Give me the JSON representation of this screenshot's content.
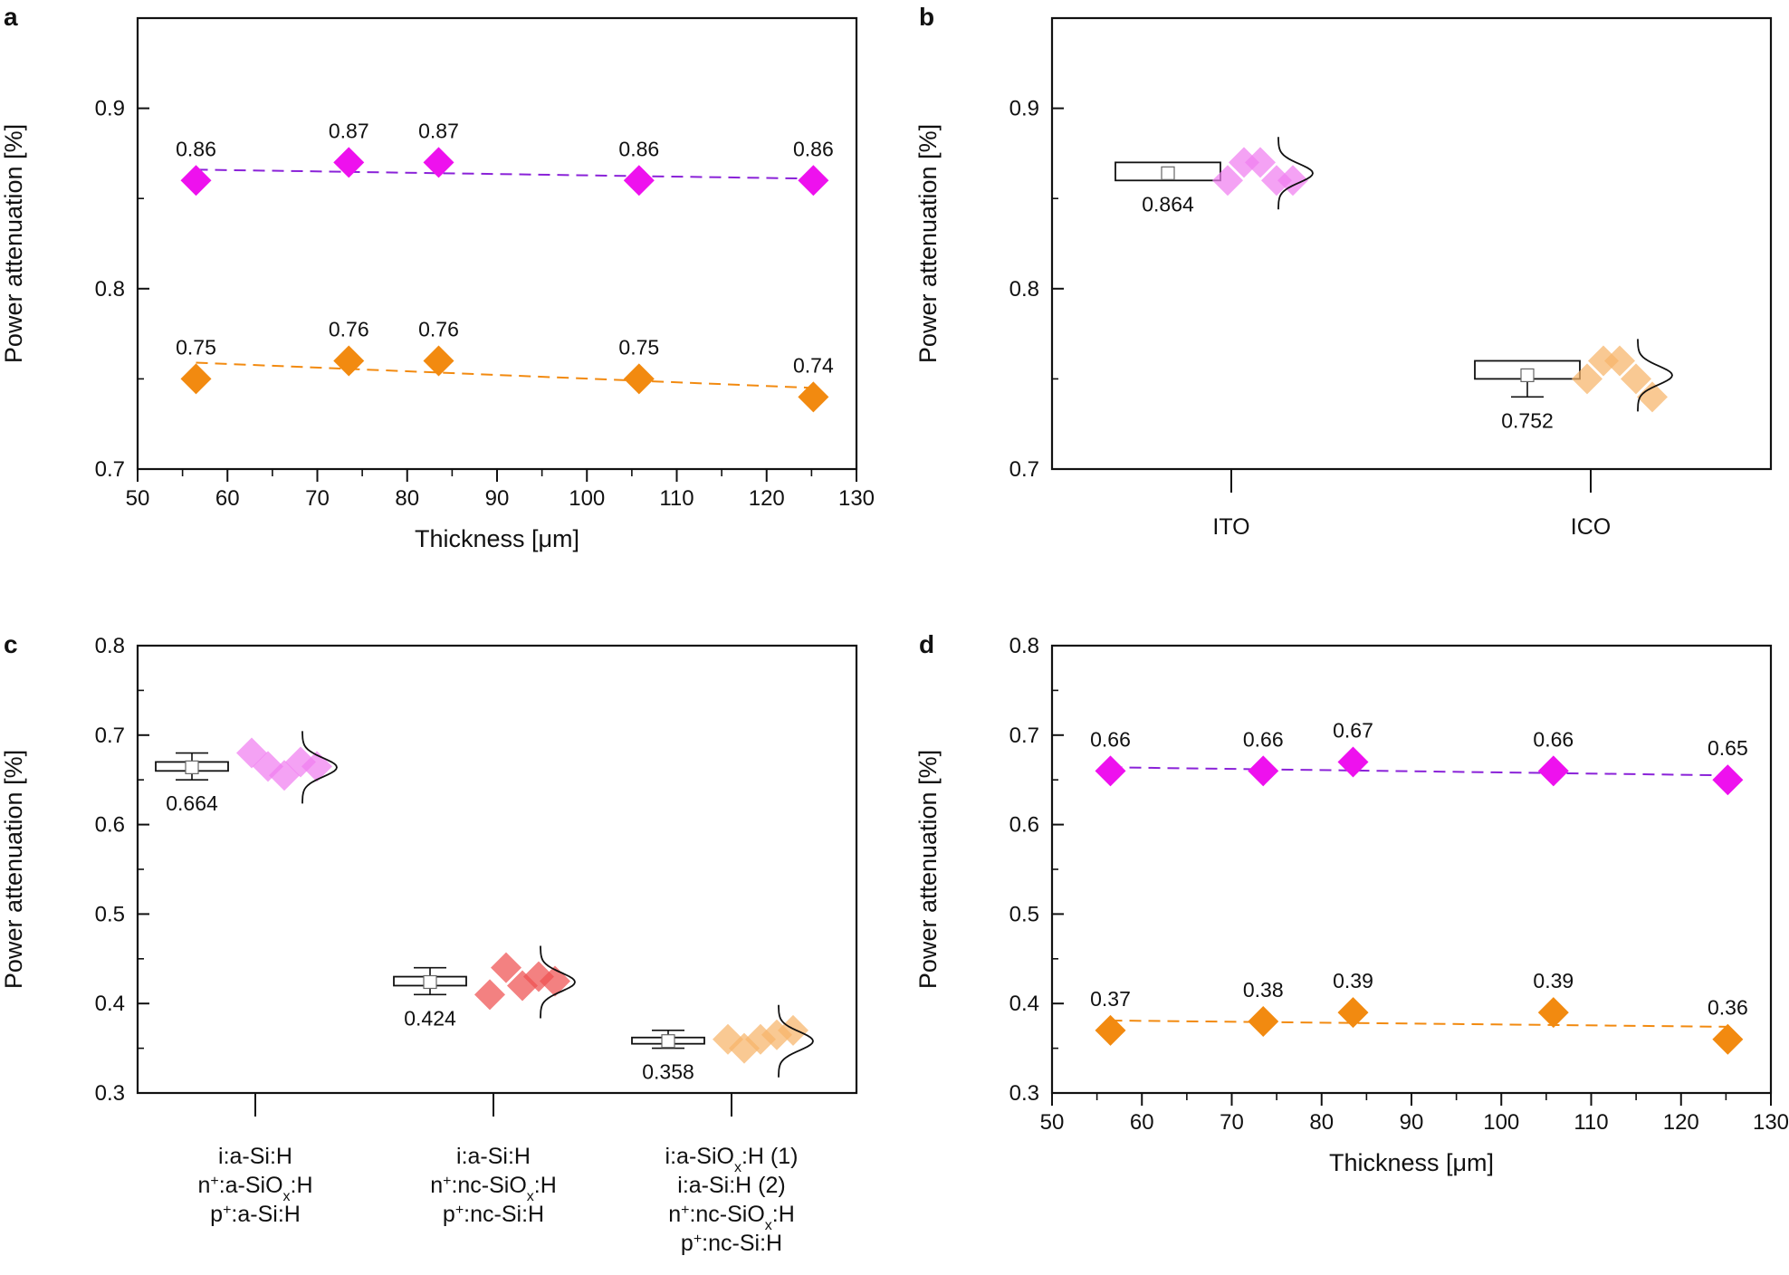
{
  "figure": {
    "colors": {
      "magenta": "#ee11ee",
      "magenta_line": "#8a22d8",
      "orange": "#f28a10",
      "orange_line": "#f28a10",
      "pink_light": "#f07ef0",
      "red_light": "#ee5050",
      "orange_light": "#f6b46a",
      "axis": "#111111"
    }
  },
  "chart_data": [
    {
      "panel": "a",
      "type": "scatter",
      "xlabel": "Thickness [μm]",
      "ylabel": "Power attenuation [%]",
      "xlim": [
        50,
        130
      ],
      "ylim": [
        0.7,
        0.95
      ],
      "xticks": [
        "50",
        "60",
        "70",
        "80",
        "90",
        "100",
        "110",
        "120",
        "130"
      ],
      "yticks": [
        "0.7",
        "0.8",
        "0.9"
      ],
      "series": [
        {
          "name": "ITO",
          "color": "#ee11ee",
          "line_color": "#8a22d8",
          "x": [
            56.5,
            73.5,
            83.5,
            105.8,
            125.2
          ],
          "y": [
            0.86,
            0.87,
            0.87,
            0.86,
            0.86
          ],
          "labels": [
            "0.86",
            "0.87",
            "0.87",
            "0.86",
            "0.86"
          ],
          "trend": [
            0.866,
            0.861
          ]
        },
        {
          "name": "ICO",
          "color": "#f28a10",
          "line_color": "#f28a10",
          "x": [
            56.5,
            73.5,
            83.5,
            105.8,
            125.2
          ],
          "y": [
            0.75,
            0.76,
            0.76,
            0.75,
            0.74
          ],
          "labels": [
            "0.75",
            "0.76",
            "0.76",
            "0.75",
            "0.74"
          ],
          "trend": [
            0.759,
            0.745
          ]
        }
      ]
    },
    {
      "panel": "b",
      "type": "box",
      "ylabel": "Power attenuation [%]",
      "ylim": [
        0.7,
        0.95
      ],
      "yticks": [
        "0.7",
        "0.8",
        "0.9"
      ],
      "categories": [
        "ITO",
        "ICO"
      ],
      "groups": [
        {
          "category": "ITO",
          "mean": 0.864,
          "mean_label": "0.864",
          "q1": 0.86,
          "q3": 0.87,
          "whisker_low": 0.86,
          "whisker_high": 0.87,
          "points": [
            0.86,
            0.87,
            0.87,
            0.86,
            0.86
          ],
          "color": "#f07ef0"
        },
        {
          "category": "ICO",
          "mean": 0.752,
          "mean_label": "0.752",
          "q1": 0.75,
          "q3": 0.76,
          "whisker_low": 0.74,
          "whisker_high": 0.76,
          "points": [
            0.75,
            0.76,
            0.76,
            0.75,
            0.74
          ],
          "color": "#f6b46a"
        }
      ]
    },
    {
      "panel": "c",
      "type": "box",
      "ylabel": "Power attenuation [%]",
      "ylim": [
        0.3,
        0.8
      ],
      "yticks": [
        "0.3",
        "0.4",
        "0.5",
        "0.6",
        "0.7",
        "0.8"
      ],
      "categories": [
        [
          [
            [
              "i:a-Si:H",
              ""
            ]
          ],
          [
            [
              "n",
              ""
            ],
            [
              "+",
              "sup"
            ],
            [
              ":a-SiO",
              ""
            ],
            [
              "x",
              "sub"
            ],
            [
              ":H",
              ""
            ]
          ],
          [
            [
              "p",
              ""
            ],
            [
              "+",
              "sup"
            ],
            [
              ":a-Si:H",
              ""
            ]
          ]
        ],
        [
          [
            [
              "i:a-Si:H",
              ""
            ]
          ],
          [
            [
              "n",
              ""
            ],
            [
              "+",
              "sup"
            ],
            [
              ":nc-SiO",
              ""
            ],
            [
              "x",
              "sub"
            ],
            [
              ":H",
              ""
            ]
          ],
          [
            [
              "p",
              ""
            ],
            [
              "+",
              "sup"
            ],
            [
              ":nc-Si:H",
              ""
            ]
          ]
        ],
        [
          [
            [
              "i:a-SiO",
              ""
            ],
            [
              "x",
              "sub"
            ],
            [
              ":H (1)",
              ""
            ]
          ],
          [
            [
              "i:a-Si:H (2)",
              ""
            ]
          ],
          [
            [
              "n",
              ""
            ],
            [
              "+",
              "sup"
            ],
            [
              ":nc-SiO",
              ""
            ],
            [
              "x",
              "sub"
            ],
            [
              ":H",
              ""
            ]
          ],
          [
            [
              "p",
              ""
            ],
            [
              "+",
              "sup"
            ],
            [
              ":nc-Si:H",
              ""
            ]
          ]
        ]
      ],
      "groups": [
        {
          "mean": 0.664,
          "mean_label": "0.664",
          "q1": 0.66,
          "q3": 0.67,
          "whisker_low": 0.65,
          "whisker_high": 0.68,
          "points": [
            0.68,
            0.665,
            0.655,
            0.67,
            0.665
          ],
          "color": "#f07ef0"
        },
        {
          "mean": 0.424,
          "mean_label": "0.424",
          "q1": 0.42,
          "q3": 0.43,
          "whisker_low": 0.41,
          "whisker_high": 0.44,
          "points": [
            0.41,
            0.44,
            0.42,
            0.43,
            0.425
          ],
          "color": "#ee5050"
        },
        {
          "mean": 0.358,
          "mean_label": "0.358",
          "q1": 0.355,
          "q3": 0.362,
          "whisker_low": 0.35,
          "whisker_high": 0.37,
          "points": [
            0.36,
            0.35,
            0.36,
            0.365,
            0.37
          ],
          "color": "#f6b46a"
        }
      ]
    },
    {
      "panel": "d",
      "type": "scatter",
      "xlabel": "Thickness [μm]",
      "ylabel": "Power attenuation [%]",
      "xlim": [
        50,
        130
      ],
      "ylim": [
        0.3,
        0.8
      ],
      "xticks": [
        "50",
        "60",
        "70",
        "80",
        "90",
        "100",
        "110",
        "120",
        "130"
      ],
      "yticks": [
        "0.3",
        "0.4",
        "0.5",
        "0.6",
        "0.7",
        "0.8"
      ],
      "series": [
        {
          "name": "ITO",
          "color": "#ee11ee",
          "line_color": "#8a22d8",
          "x": [
            56.5,
            73.5,
            83.5,
            105.8,
            125.2
          ],
          "y": [
            0.66,
            0.66,
            0.67,
            0.66,
            0.65
          ],
          "labels": [
            "0.66",
            "0.66",
            "0.67",
            "0.66",
            "0.65"
          ],
          "trend": [
            0.664,
            0.655
          ]
        },
        {
          "name": "ICO",
          "color": "#f28a10",
          "line_color": "#f28a10",
          "x": [
            56.5,
            73.5,
            83.5,
            105.8,
            125.2
          ],
          "y": [
            0.37,
            0.38,
            0.39,
            0.39,
            0.36
          ],
          "labels": [
            "0.37",
            "0.38",
            "0.39",
            "0.39",
            "0.36"
          ],
          "trend": [
            0.381,
            0.374
          ]
        }
      ]
    }
  ]
}
